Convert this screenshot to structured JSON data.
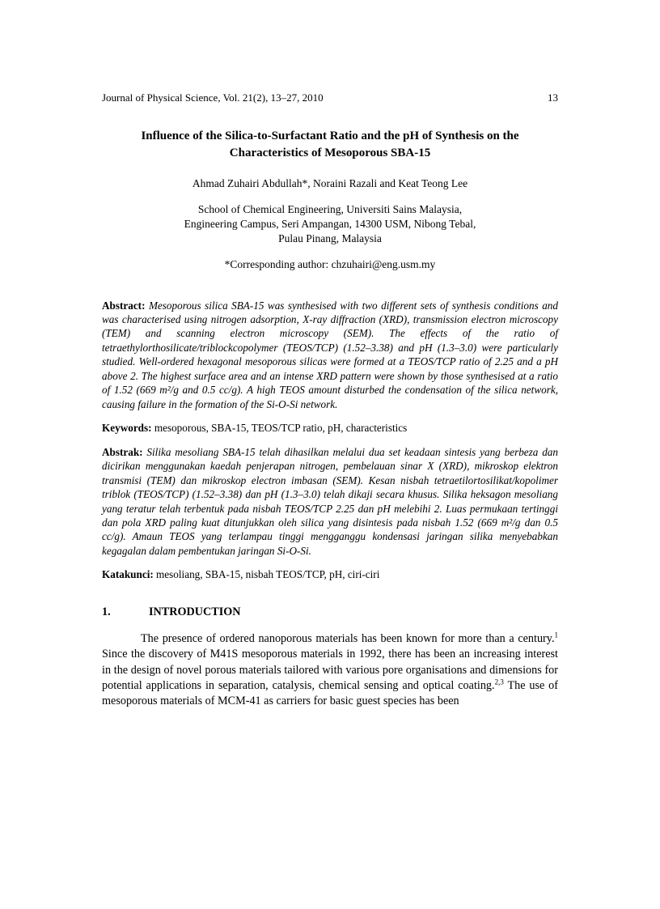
{
  "header": {
    "journal": "Journal of Physical Science, Vol. 21(2), 13–27, 2010",
    "page": "13"
  },
  "title": "Influence of the Silica-to-Surfactant Ratio and the pH of Synthesis on the Characteristics of Mesoporous SBA-15",
  "authors": "Ahmad Zuhairi Abdullah*, Noraini Razali and Keat Teong Lee",
  "affiliation": "School of Chemical Engineering, Universiti Sains Malaysia,\nEngineering Campus, Seri Ampangan, 14300 USM, Nibong Tebal,\nPulau Pinang, Malaysia",
  "corresponding": "*Corresponding author: chzuhairi@eng.usm.my",
  "abstract_en": {
    "label": "Abstract:",
    "text": "Mesoporous silica SBA-15 was synthesised with two different sets of synthesis conditions and was characterised using nitrogen adsorption, X-ray diffraction (XRD), transmission electron microscopy (TEM) and scanning electron microscopy (SEM). The effects of the ratio of tetraethylorthosilicate/triblockcopolymer (TEOS/TCP) (1.52–3.38) and pH (1.3–3.0) were particularly studied. Well-ordered hexagonal mesoporous silicas were formed at a TEOS/TCP ratio of 2.25 and a pH above 2. The highest surface area and an intense XRD pattern were shown by those synthesised at a ratio of 1.52 (669 m²/g and 0.5 cc/g). A high TEOS amount disturbed the condensation of the silica network, causing failure in the formation of the Si-O-Si network."
  },
  "keywords_en": {
    "label": "Keywords:",
    "text": "mesoporous, SBA-15, TEOS/TCP ratio, pH, characteristics"
  },
  "abstract_ms": {
    "label": "Abstrak:",
    "text": "Silika mesoliang SBA-15 telah dihasilkan melalui dua set keadaan sintesis yang berbeza dan dicirikan menggunakan kaedah penjerapan nitrogen, pembelauan sinar X (XRD), mikroskop elektron transmisi (TEM) dan mikroskop electron imbasan (SEM). Kesan nisbah tetraetilortosilikat/kopolimer triblok (TEOS/TCP) (1.52–3.38) dan pH (1.3–3.0) telah dikaji secara khusus. Silika heksagon mesoliang yang teratur telah terbentuk pada nisbah TEOS/TCP 2.25 dan pH melebihi 2. Luas permukaan tertinggi dan pola XRD paling kuat ditunjukkan oleh silica yang disintesis pada nisbah 1.52 (669 m²/g dan 0.5 cc/g). Amaun TEOS yang terlampau tinggi mengganggu kondensasi jaringan silika menyebabkan kegagalan dalam pembentukan jaringan Si-O-Si."
  },
  "keywords_ms": {
    "label": "Katakunci:",
    "text": "mesoliang, SBA-15, nisbah TEOS/TCP, pH, ciri-ciri"
  },
  "section1": {
    "num": "1.",
    "title": "INTRODUCTION"
  },
  "intro_para_pre": "The presence of ordered nanoporous materials has been known for more than a century.",
  "intro_para_mid": " Since the discovery of M41S mesoporous materials in 1992, there has been an increasing interest in the design of novel porous materials tailored with various pore organisations and dimensions for potential applications in separation, catalysis, chemical sensing and optical coating.",
  "intro_para_post": " The use of mesoporous materials of MCM-41 as carriers for basic guest species has been",
  "ref1": "1",
  "ref23": "2,3"
}
